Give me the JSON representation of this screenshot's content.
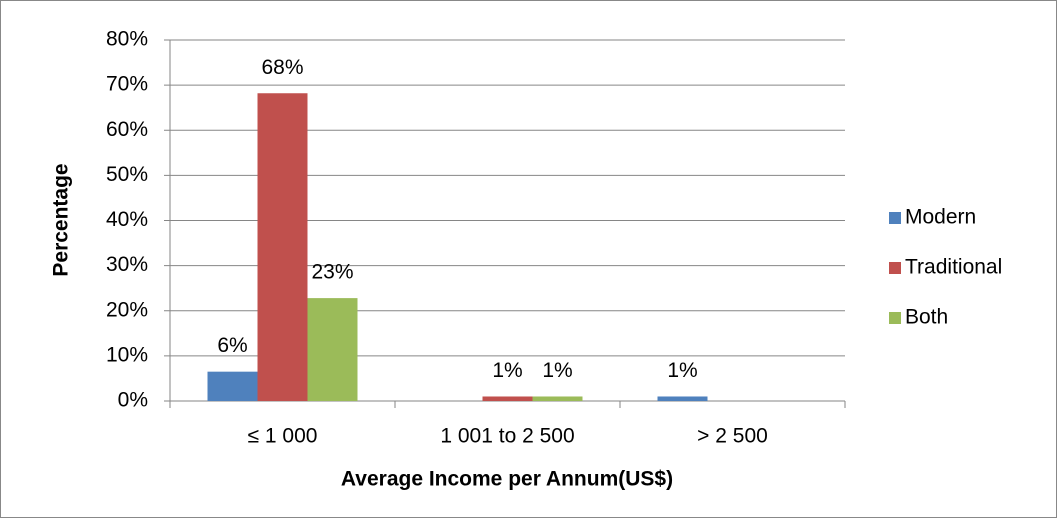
{
  "chart_data": {
    "type": "bar",
    "x_label": "Average Income per Annum(US$)",
    "y_label": "Percentage",
    "categories": [
      "≤ 1 000",
      "1 001 to 2 500",
      ">  2 500"
    ],
    "series": [
      {
        "name": "Modern",
        "color": "#4f81bd",
        "values": [
          6.5,
          0,
          1.0
        ],
        "value_labels": [
          "6%",
          null,
          "1%"
        ]
      },
      {
        "name": "Traditional",
        "color": "#c0504d",
        "values": [
          68.2,
          1.0,
          0
        ],
        "value_labels": [
          "68%",
          "1%",
          null
        ]
      },
      {
        "name": "Both",
        "color": "#9bbb59",
        "values": [
          22.8,
          1.0,
          0
        ],
        "value_labels": [
          "23%",
          "1%",
          null
        ]
      }
    ],
    "ylim": [
      0,
      80
    ],
    "yticks": [
      {
        "value": 0,
        "label": "0%"
      },
      {
        "value": 10,
        "label": "10%"
      },
      {
        "value": 20,
        "label": "20%"
      },
      {
        "value": 30,
        "label": "30%"
      },
      {
        "value": 40,
        "label": "40%"
      },
      {
        "value": 50,
        "label": "50%"
      },
      {
        "value": 60,
        "label": "60%"
      },
      {
        "value": 70,
        "label": "70%"
      },
      {
        "value": 80,
        "label": "80%"
      }
    ],
    "grid": true,
    "legend": "right"
  }
}
